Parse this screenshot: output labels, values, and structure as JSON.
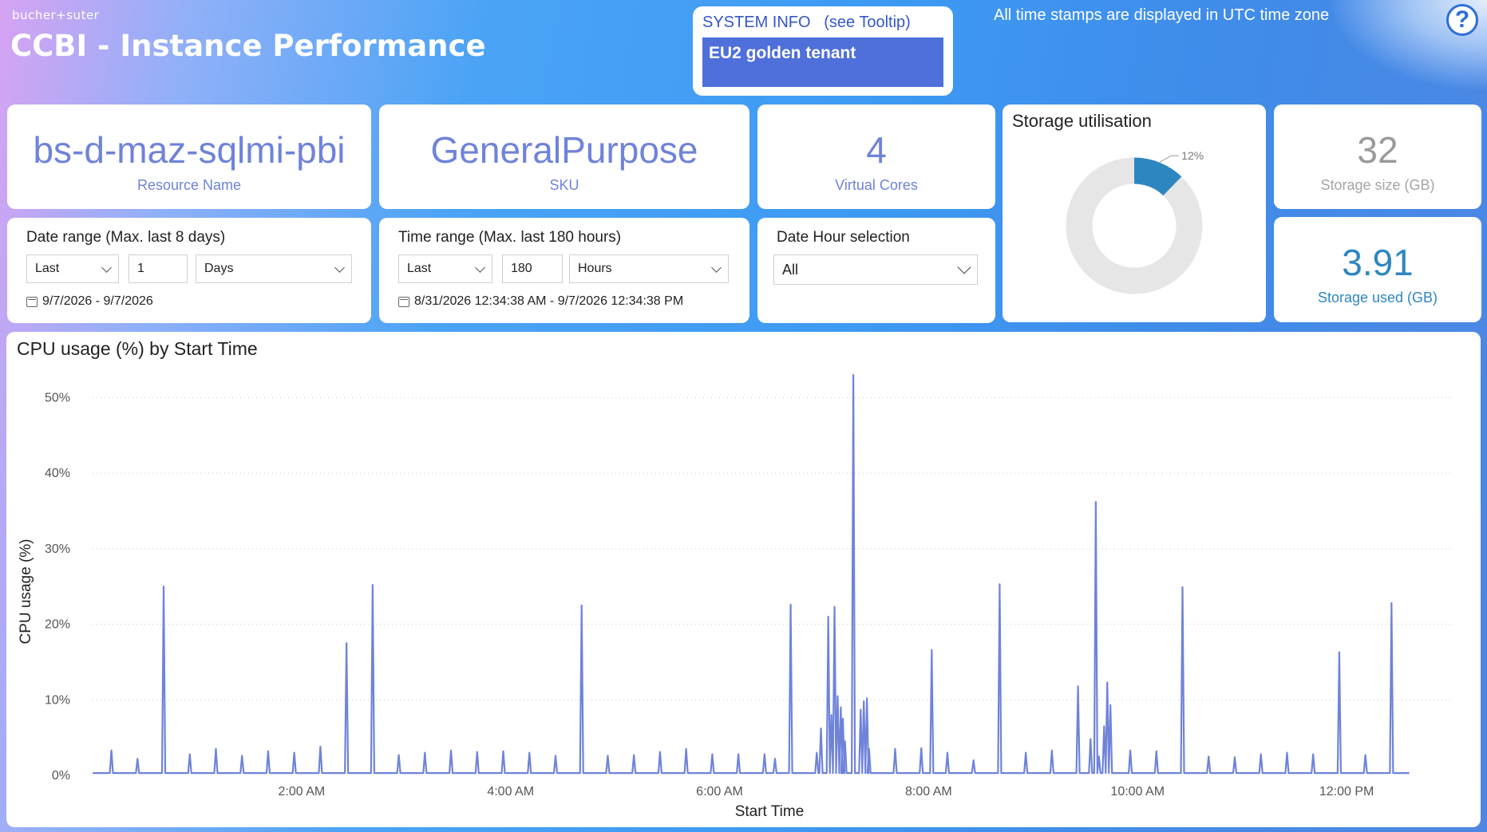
{
  "header": {
    "brand": "bucher+suter",
    "title": "CCBI - Instance Performance",
    "timezone_note": "All time stamps are displayed in UTC time zone",
    "help_label": "?"
  },
  "system_info": {
    "heading": "SYSTEM INFO   (see Tooltip)",
    "tenant": "EU2 golden tenant"
  },
  "kpis": {
    "resource": {
      "value": "bs-d-maz-sqlmi-pbi",
      "label": "Resource Name"
    },
    "sku": {
      "value": "GeneralPurpose",
      "label": "SKU"
    },
    "cores": {
      "value": "4",
      "label": "Virtual Cores"
    },
    "storage_size": {
      "value": "32",
      "label": "Storage size (GB)"
    },
    "storage_used": {
      "value": "3.91",
      "label": "Storage used (GB)"
    }
  },
  "filters": {
    "date_range": {
      "heading": "Date range (Max. last 8 days)",
      "mode": "Last",
      "amount": "1",
      "unit": "Days",
      "range_text": "9/7/2026 - 9/7/2026"
    },
    "time_range": {
      "heading": "Time range (Max. last 180 hours)",
      "mode": "Last",
      "amount": "180",
      "unit": "Hours",
      "range_text": "8/31/2026 12:34:38 AM - 9/7/2026 12:34:38 PM"
    },
    "date_hour": {
      "heading": "Date Hour selection",
      "value": "All"
    }
  },
  "storage_utilisation": {
    "title": "Storage utilisation",
    "percent_label": "12%",
    "fraction": 0.122,
    "used_color": "#2e86c1",
    "free_color": "#e6e6e6"
  },
  "chart_data": {
    "type": "line",
    "title": "CPU usage (%) by Start Time",
    "xlabel": "Start Time",
    "ylabel": "CPU usage (%)",
    "x_ticks": [
      "2:00 AM",
      "4:00 AM",
      "6:00 AM",
      "8:00 AM",
      "10:00 AM",
      "12:00 PM"
    ],
    "y_ticks": [
      "0%",
      "10%",
      "20%",
      "30%",
      "40%",
      "50%"
    ],
    "ylim": [
      0,
      55
    ],
    "xlim_hours": [
      0,
      13.0
    ],
    "baseline": 0.3,
    "color": "#6f83d9",
    "grid": true,
    "spikes": [
      {
        "x": 0.18,
        "y": 3.3
      },
      {
        "x": 0.43,
        "y": 2.2
      },
      {
        "x": 0.68,
        "y": 25.0
      },
      {
        "x": 0.93,
        "y": 2.8
      },
      {
        "x": 1.18,
        "y": 3.5
      },
      {
        "x": 1.43,
        "y": 2.6
      },
      {
        "x": 1.68,
        "y": 3.2
      },
      {
        "x": 1.93,
        "y": 3.0
      },
      {
        "x": 2.18,
        "y": 3.8
      },
      {
        "x": 2.43,
        "y": 17.5
      },
      {
        "x": 2.68,
        "y": 25.2
      },
      {
        "x": 2.93,
        "y": 2.7
      },
      {
        "x": 3.18,
        "y": 3.0
      },
      {
        "x": 3.43,
        "y": 3.3
      },
      {
        "x": 3.68,
        "y": 3.1
      },
      {
        "x": 3.93,
        "y": 3.2
      },
      {
        "x": 4.18,
        "y": 3.0
      },
      {
        "x": 4.43,
        "y": 2.6
      },
      {
        "x": 4.68,
        "y": 22.5
      },
      {
        "x": 4.93,
        "y": 2.6
      },
      {
        "x": 5.18,
        "y": 2.7
      },
      {
        "x": 5.43,
        "y": 3.1
      },
      {
        "x": 5.68,
        "y": 3.5
      },
      {
        "x": 5.93,
        "y": 2.8
      },
      {
        "x": 6.18,
        "y": 2.8
      },
      {
        "x": 6.43,
        "y": 2.8
      },
      {
        "x": 6.53,
        "y": 2.2
      },
      {
        "x": 6.68,
        "y": 22.6
      },
      {
        "x": 6.93,
        "y": 3.0
      },
      {
        "x": 6.97,
        "y": 6.2
      },
      {
        "x": 7.04,
        "y": 21.0
      },
      {
        "x": 7.07,
        "y": 8.0
      },
      {
        "x": 7.1,
        "y": 22.3
      },
      {
        "x": 7.13,
        "y": 10.5
      },
      {
        "x": 7.16,
        "y": 9.0
      },
      {
        "x": 7.18,
        "y": 7.5
      },
      {
        "x": 7.2,
        "y": 4.5
      },
      {
        "x": 7.28,
        "y": 53.0
      },
      {
        "x": 7.35,
        "y": 8.7
      },
      {
        "x": 7.38,
        "y": 9.8
      },
      {
        "x": 7.41,
        "y": 10.2
      },
      {
        "x": 7.43,
        "y": 3.5
      },
      {
        "x": 7.68,
        "y": 3.5
      },
      {
        "x": 7.93,
        "y": 3.6
      },
      {
        "x": 8.03,
        "y": 16.6
      },
      {
        "x": 8.18,
        "y": 3.0
      },
      {
        "x": 8.43,
        "y": 2.0
      },
      {
        "x": 8.68,
        "y": 25.3
      },
      {
        "x": 8.93,
        "y": 3.0
      },
      {
        "x": 9.18,
        "y": 3.3
      },
      {
        "x": 9.43,
        "y": 11.8
      },
      {
        "x": 9.55,
        "y": 4.8
      },
      {
        "x": 9.6,
        "y": 36.2
      },
      {
        "x": 9.63,
        "y": 2.5
      },
      {
        "x": 9.68,
        "y": 6.5
      },
      {
        "x": 9.71,
        "y": 12.3
      },
      {
        "x": 9.74,
        "y": 9.3
      },
      {
        "x": 9.93,
        "y": 3.3
      },
      {
        "x": 10.18,
        "y": 3.2
      },
      {
        "x": 10.43,
        "y": 24.9
      },
      {
        "x": 10.68,
        "y": 2.5
      },
      {
        "x": 10.93,
        "y": 2.4
      },
      {
        "x": 11.18,
        "y": 2.8
      },
      {
        "x": 11.43,
        "y": 3.0
      },
      {
        "x": 11.68,
        "y": 2.8
      },
      {
        "x": 11.93,
        "y": 16.3
      },
      {
        "x": 12.18,
        "y": 2.7
      },
      {
        "x": 12.43,
        "y": 22.8
      }
    ]
  }
}
